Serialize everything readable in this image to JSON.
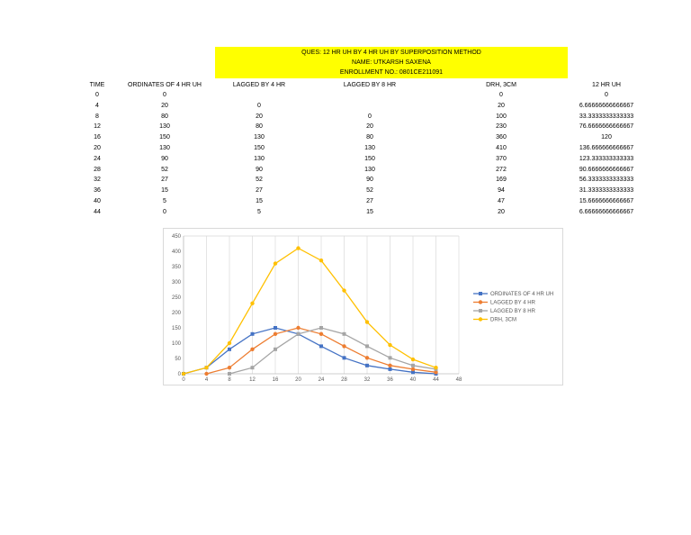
{
  "header": {
    "question": "QUES: 12 HR UH BY 4 HR UH BY SUPERPOSITION METHOD",
    "name": "NAME: UTKARSH SAXENA",
    "enrollment": "ENROLLMENT NO.: 0801CE211091",
    "fill_color": "#ffff00"
  },
  "table": {
    "headers": [
      "TIME",
      "ORDINATES OF 4 HR UH",
      "LAGGED BY 4 HR",
      "LAGGED BY 8 HR",
      "DRH, 3CM",
      "12 HR UH"
    ],
    "rows": [
      [
        "0",
        "0",
        "",
        "",
        "0",
        "0"
      ],
      [
        "4",
        "20",
        "0",
        "",
        "20",
        "6.66666666666667"
      ],
      [
        "8",
        "80",
        "20",
        "0",
        "100",
        "33.3333333333333"
      ],
      [
        "12",
        "130",
        "80",
        "20",
        "230",
        "76.6666666666667"
      ],
      [
        "16",
        "150",
        "130",
        "80",
        "360",
        "120"
      ],
      [
        "20",
        "130",
        "150",
        "130",
        "410",
        "136.666666666667"
      ],
      [
        "24",
        "90",
        "130",
        "150",
        "370",
        "123.333333333333"
      ],
      [
        "28",
        "52",
        "90",
        "130",
        "272",
        "90.6666666666667"
      ],
      [
        "32",
        "27",
        "52",
        "90",
        "169",
        "56.3333333333333"
      ],
      [
        "36",
        "15",
        "27",
        "52",
        "94",
        "31.3333333333333"
      ],
      [
        "40",
        "5",
        "15",
        "27",
        "47",
        "15.6666666666667"
      ],
      [
        "44",
        "0",
        "5",
        "15",
        "20",
        "6.66666666666667"
      ]
    ]
  },
  "chart_data": {
    "type": "line",
    "x_ticks": [
      "0",
      "4",
      "8",
      "12",
      "16",
      "20",
      "24",
      "28",
      "32",
      "36",
      "40",
      "44",
      "48"
    ],
    "y_ticks": [
      "0",
      "50",
      "100",
      "150",
      "200",
      "250",
      "300",
      "350",
      "400",
      "450"
    ],
    "xlim": [
      0,
      48
    ],
    "ylim": [
      0,
      450
    ],
    "grid": "vertical",
    "legend_position": "right",
    "series": [
      {
        "name": "ORDINATES OF 4 HR UH",
        "color": "#4472c4",
        "marker": "square",
        "x": [
          0,
          4,
          8,
          12,
          16,
          20,
          24,
          28,
          32,
          36,
          40,
          44
        ],
        "y": [
          0,
          20,
          80,
          130,
          150,
          130,
          90,
          52,
          27,
          15,
          5,
          0
        ]
      },
      {
        "name": "LAGGED BY 4 HR",
        "color": "#ed7d31",
        "marker": "circle",
        "x": [
          4,
          8,
          12,
          16,
          20,
          24,
          28,
          32,
          36,
          40,
          44
        ],
        "y": [
          0,
          20,
          80,
          130,
          150,
          130,
          90,
          52,
          27,
          15,
          5
        ]
      },
      {
        "name": "LAGGED BY 8 HR",
        "color": "#a5a5a5",
        "marker": "square",
        "x": [
          8,
          12,
          16,
          20,
          24,
          28,
          32,
          36,
          40,
          44
        ],
        "y": [
          0,
          20,
          80,
          130,
          150,
          130,
          90,
          52,
          27,
          15
        ]
      },
      {
        "name": "DRH, 3CM",
        "color": "#ffc000",
        "marker": "circle",
        "x": [
          0,
          4,
          8,
          12,
          16,
          20,
          24,
          28,
          32,
          36,
          40,
          44
        ],
        "y": [
          0,
          20,
          100,
          230,
          360,
          410,
          370,
          272,
          169,
          94,
          47,
          20
        ]
      }
    ]
  }
}
